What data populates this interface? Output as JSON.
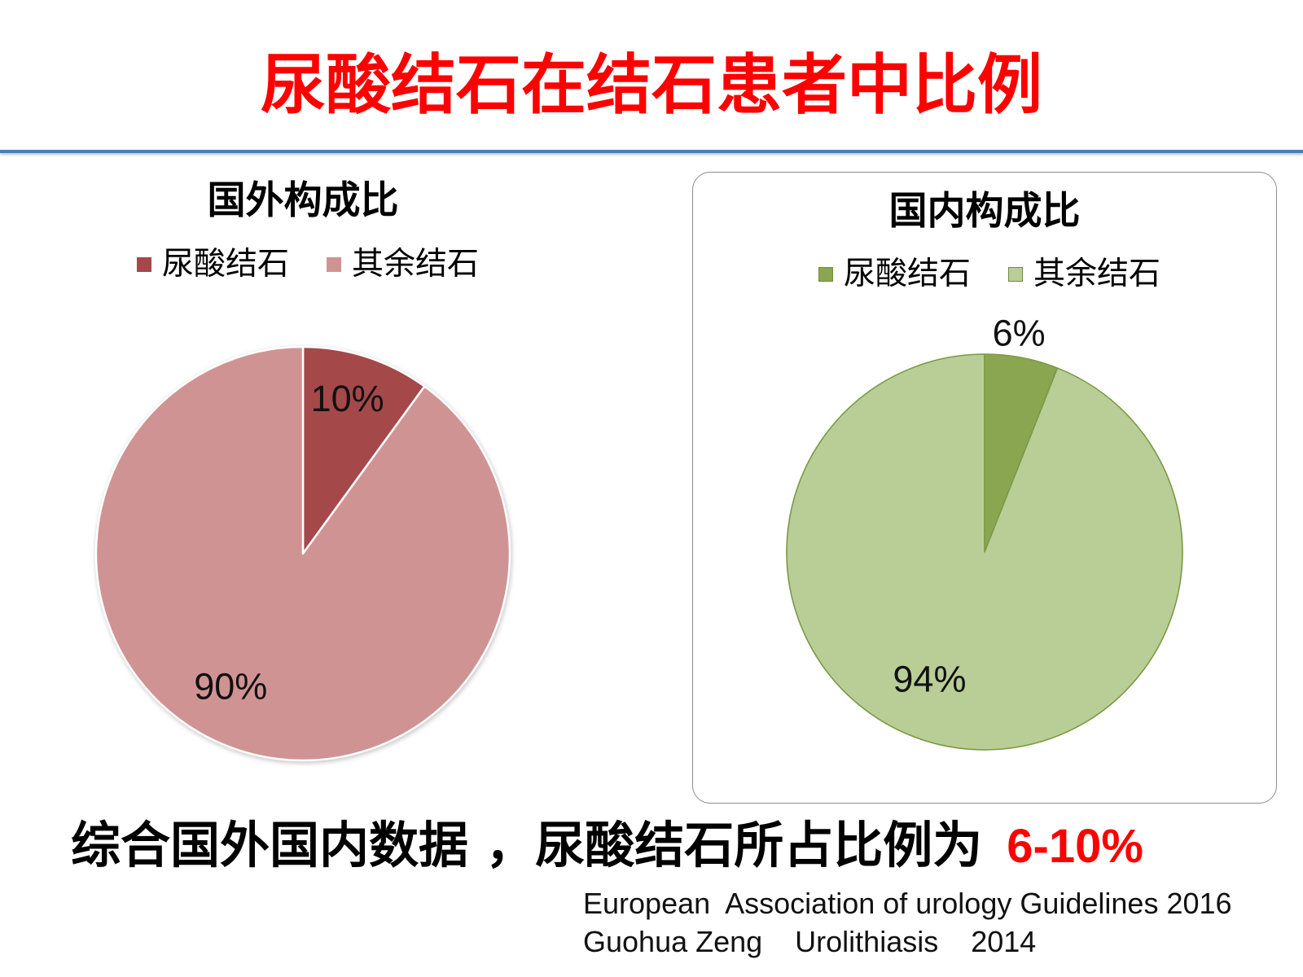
{
  "slide": {
    "title": "尿酸结石在结石患者中比例",
    "summary_text": "综合国外国内数据 ，尿酸结石所占比例为",
    "summary_highlight": "6-10%",
    "references": [
      "European  Association of urology Guidelines 2016",
      "Guohua Zeng    Urolithiasis    2014"
    ]
  },
  "theme": {
    "title_color": "#FF0000",
    "highlight_color": "#FF0000",
    "rule_color": "#4A7EBB",
    "text_color": "#000000"
  },
  "chart_data": [
    {
      "type": "pie",
      "title": "国外构成比",
      "categories": [
        "尿酸结石",
        "其余结石"
      ],
      "values": [
        10,
        90
      ],
      "data_labels": [
        "10%",
        "90%"
      ],
      "colors": [
        "#A5484A",
        "#D09393"
      ],
      "legend_position": "top"
    },
    {
      "type": "pie",
      "title": "国内构成比",
      "categories": [
        "尿酸结石",
        "其余结石"
      ],
      "values": [
        6,
        94
      ],
      "data_labels": [
        "6%",
        "94%"
      ],
      "colors": [
        "#8AA650",
        "#B9CE96"
      ],
      "legend_position": "top"
    }
  ]
}
